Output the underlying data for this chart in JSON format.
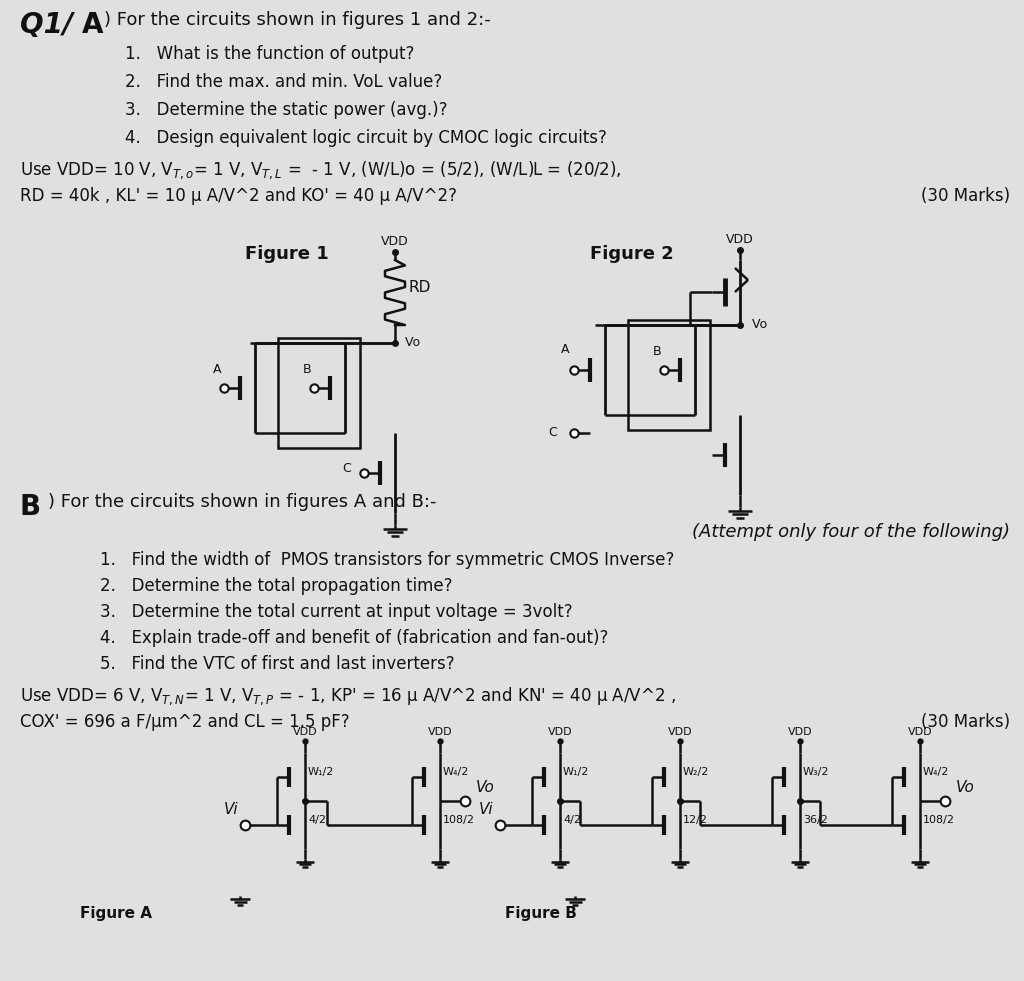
{
  "bg_color": "#e8e8e8",
  "title_q1": "Q1/",
  "title_a": "A",
  "line1": ") For the circuits shown in figures 1 and 2:-",
  "sub1": "1.   What is the function of output?",
  "sub2": "2.   Find the max. and min. VoL value?",
  "sub3": "3.   Determine the static power (avg.)?",
  "sub4": "4.   Design equivalent logic circuit by CMOC logic circuits?",
  "param1": "Use VDD= 10 V, V_{T,o}= 1 V, V_{T,L} =  - 1 V, (W/L)o = (5/2), (W/L)L = (20/2),",
  "param2": "RD = 40k , KL' = 10 μ A/V^2 and KO' = 40 μ A/V^2?",
  "marks1": "(30 Marks)",
  "fig1_label": "Figure 1",
  "fig2_label": "Figure 2",
  "title_b": "B",
  "line_b": ") For the circuits shown in figures A and B:-",
  "attempt": "(Attempt only four of the following)",
  "b_sub1": "1.   Find the width of  PMOS transistors for symmetric CMOS Inverse?",
  "b_sub2": "2.   Determine the total propagation time?",
  "b_sub3": "3.   Determine the total current at input voltage = 3volt?",
  "b_sub4": "4.   Explain trade-off and benefit of (fabrication and fan-out)?",
  "b_sub5": "5.   Find the VTC of first and last inverters?",
  "param3": "Use VDD= 6 V, V_{T,N}= 1 V, V_{T,P} = - 1, KP' = 16 μ A/V^2 and KN' = 40 μ A/V^2 ,",
  "param4": "COX' = 696 a F/μm^2 and CL = 1.5 pF?",
  "marks2": "(30 Marks)",
  "figA_label": "Figure A",
  "figB_label": "Figure B",
  "figA_wps": [
    "W₁/2",
    "W₄/2"
  ],
  "figA_wns": [
    "4/2",
    "108/2"
  ],
  "figB_wps": [
    "W₁/2",
    "W₂/2",
    "W₃/2",
    "W₄/2"
  ],
  "figB_wns": [
    "4/2",
    "12/2",
    "36/2",
    "108/2"
  ]
}
